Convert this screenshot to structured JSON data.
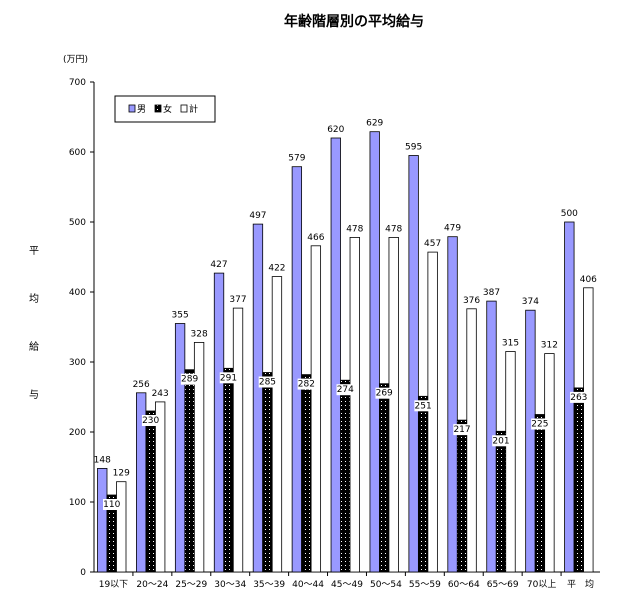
{
  "chart_data": {
    "type": "bar",
    "title": "年齢階層別の平均給与",
    "unit": "(万円)",
    "ylabel": [
      "平",
      "均",
      "給",
      "与"
    ],
    "ylim": [
      0,
      700
    ],
    "yticks": [
      "0",
      "100",
      "200",
      "300",
      "400",
      "500",
      "600",
      "700"
    ],
    "categories": [
      "19以下",
      "20～24",
      "25～29",
      "30～34",
      "35～39",
      "40～44",
      "45～49",
      "50～54",
      "55～59",
      "60～64",
      "65～69",
      "70以上",
      "平　均"
    ],
    "series": [
      {
        "name": "男",
        "color": "#9999ff",
        "values": [
          148,
          256,
          355,
          427,
          497,
          579,
          620,
          629,
          595,
          479,
          387,
          374,
          500
        ]
      },
      {
        "name": "女",
        "color": "#000000",
        "values": [
          110,
          230,
          289,
          291,
          285,
          282,
          274,
          269,
          251,
          217,
          201,
          225,
          263
        ]
      },
      {
        "name": "計",
        "color": "#ffffff",
        "values": [
          129,
          243,
          328,
          377,
          422,
          466,
          478,
          478,
          457,
          376,
          315,
          312,
          406
        ]
      }
    ],
    "legend_position": "top-left",
    "grid": false
  }
}
